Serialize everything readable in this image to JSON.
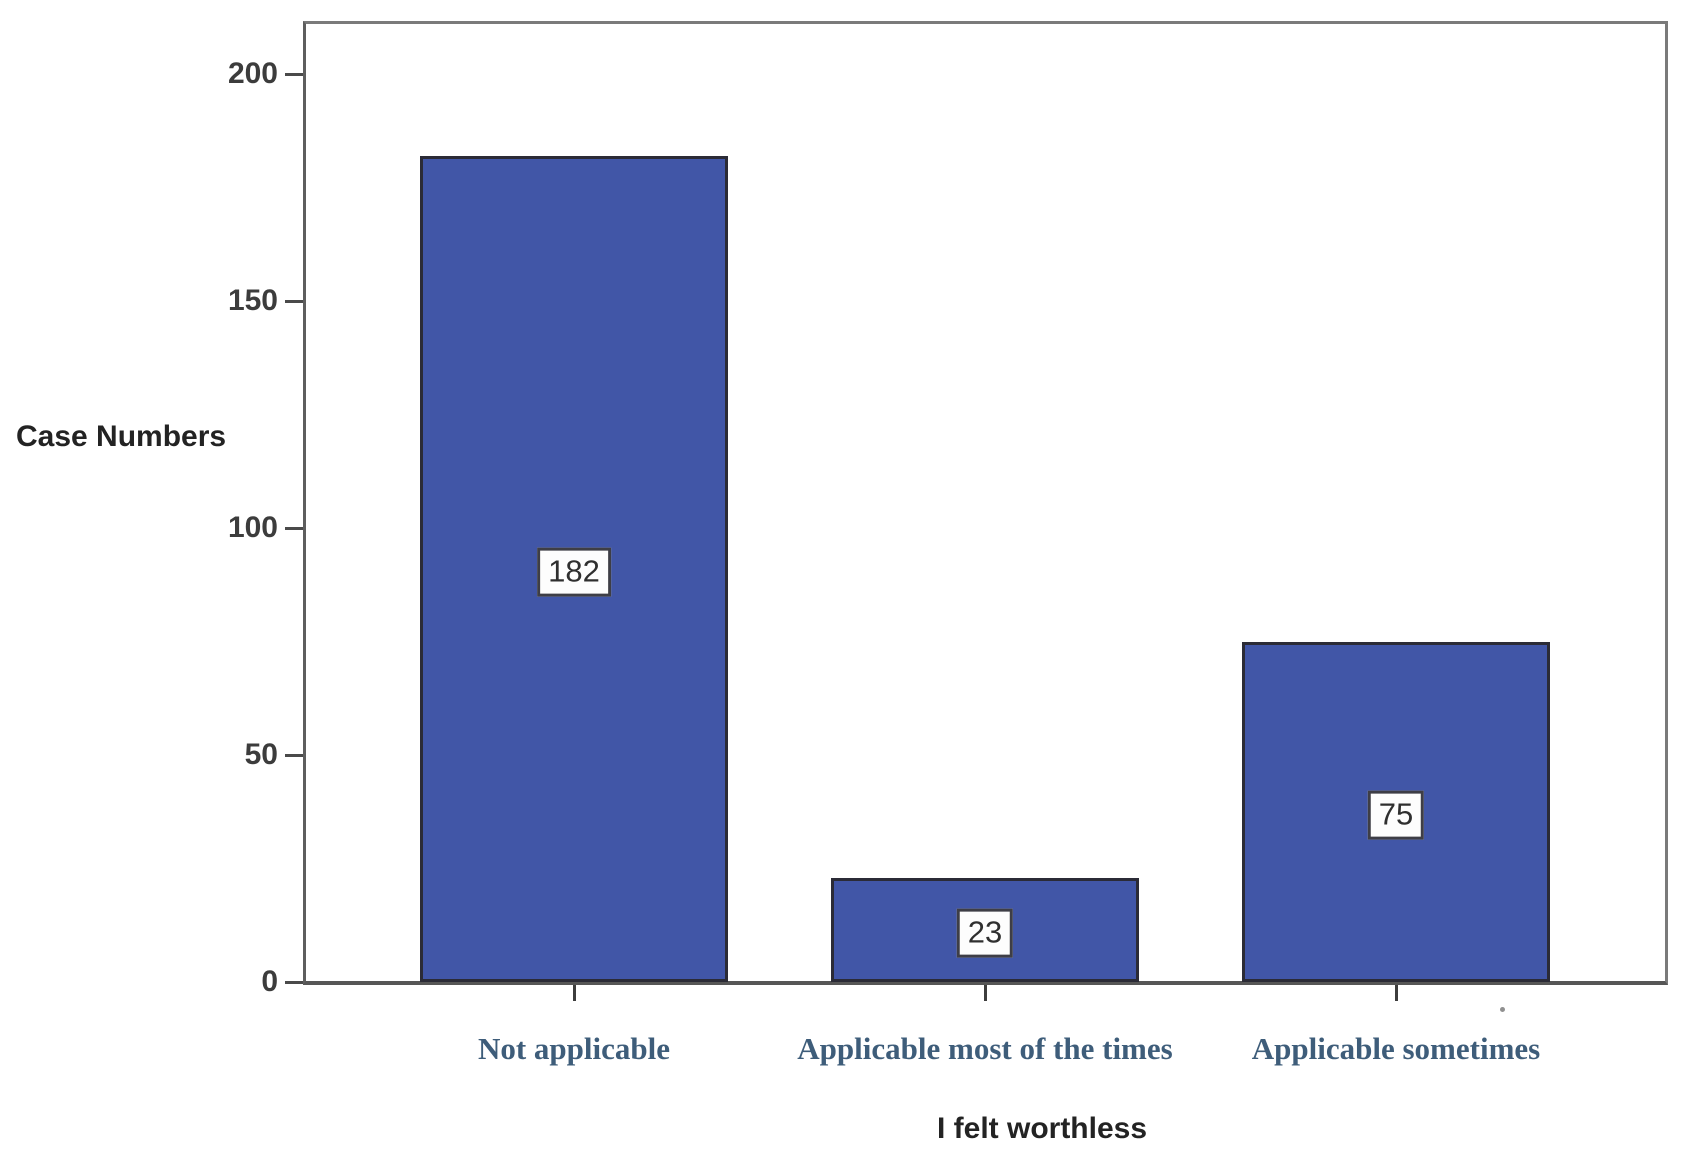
{
  "chart_data": {
    "type": "bar",
    "title": "",
    "categories": [
      "Not applicable",
      "Applicable most of the times",
      "Applicable sometimes"
    ],
    "values": [
      182,
      23,
      75
    ],
    "value_labels": [
      "182",
      "23",
      "75"
    ],
    "xlabel": "I felt worthless",
    "ylabel": "Case Numbers",
    "ylim": [
      0,
      200
    ],
    "yticks": [
      0,
      50,
      100,
      150,
      200
    ],
    "grid": false,
    "legend": "none",
    "bar_color": "#4156A7",
    "bar_border_color": "#2B2B36",
    "category_label_color": "#3E5D7A",
    "axis_color": "#686868"
  }
}
